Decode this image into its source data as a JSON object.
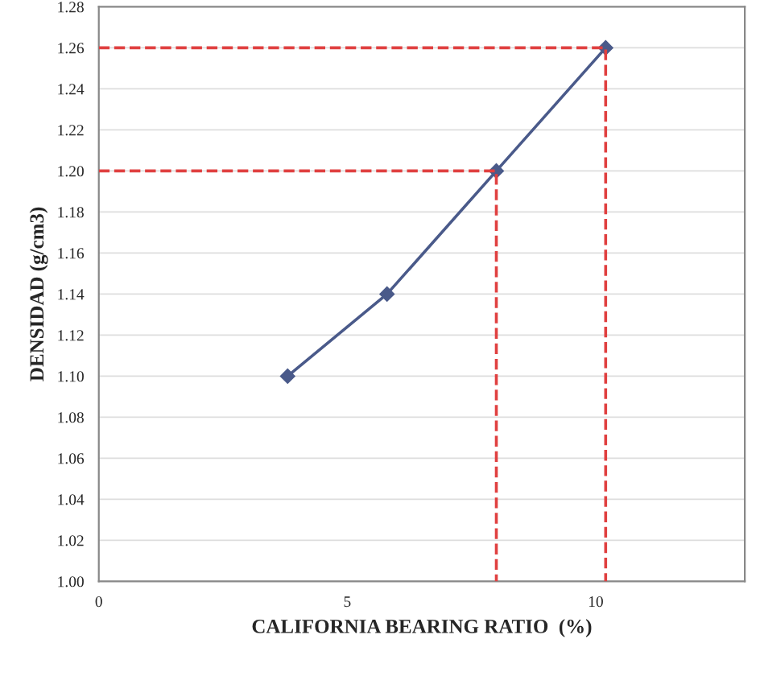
{
  "chart_data": {
    "type": "line",
    "xlabel": "CALIFORNIA BEARING RATIO  (%)",
    "ylabel": "DENSIDAD (g/cm3)",
    "xlim": [
      0,
      13
    ],
    "xticks": [
      0,
      5,
      10
    ],
    "ylim": [
      1.0,
      1.28
    ],
    "yticks": [
      {
        "value": 1.0,
        "label": "1.00"
      },
      {
        "value": 1.02,
        "label": "1.02"
      },
      {
        "value": 1.04,
        "label": "1.04"
      },
      {
        "value": 1.06,
        "label": "1.06"
      },
      {
        "value": 1.08,
        "label": "1.08"
      },
      {
        "value": 1.1,
        "label": "1.10"
      },
      {
        "value": 1.12,
        "label": "1.12"
      },
      {
        "value": 1.14,
        "label": "1.14"
      },
      {
        "value": 1.16,
        "label": "1.16"
      },
      {
        "value": 1.18,
        "label": "1.18"
      },
      {
        "value": 1.2,
        "label": "1.20"
      },
      {
        "value": 1.22,
        "label": "1.22"
      },
      {
        "value": 1.24,
        "label": "1.24"
      },
      {
        "value": 1.26,
        "label": "1.26"
      },
      {
        "value": 1.28,
        "label": "1.28"
      }
    ],
    "grid": "y",
    "series": [
      {
        "color": "#4a5a8a",
        "x": [
          3.8,
          5.8,
          8.0,
          10.2
        ],
        "values": [
          1.1,
          1.14,
          1.2,
          1.26
        ],
        "marker": "diamond",
        "line_style": "solid"
      },
      {
        "color": "#e04040",
        "x": [
          0,
          8.0,
          8.0
        ],
        "values": [
          1.2,
          1.2,
          1.0
        ],
        "marker": "none",
        "line_style": "dashed"
      },
      {
        "color": "#e04040",
        "x": [
          0,
          10.2,
          10.2
        ],
        "values": [
          1.26,
          1.26,
          1.0
        ],
        "marker": "none",
        "line_style": "dashed"
      }
    ]
  }
}
